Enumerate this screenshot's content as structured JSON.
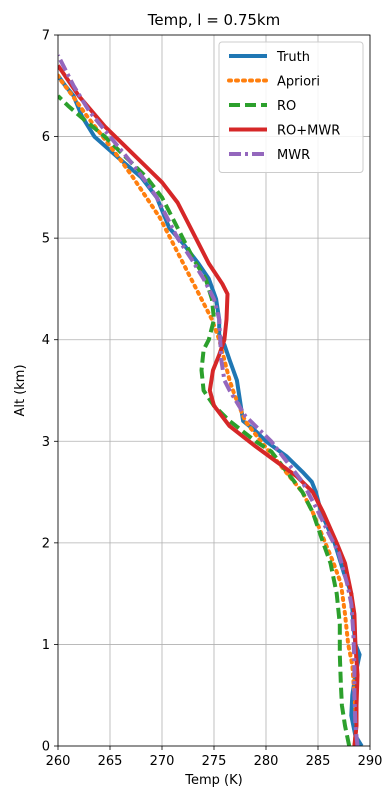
{
  "chart_data": {
    "type": "line",
    "title": "Temp, l = 0.75km",
    "xlabel": "Temp (K)",
    "ylabel": "Alt (km)",
    "xlim": [
      260,
      290
    ],
    "ylim": [
      0,
      7
    ],
    "xticks": [
      260,
      265,
      270,
      275,
      280,
      285,
      290
    ],
    "yticks": [
      0,
      1,
      2,
      3,
      4,
      5,
      6,
      7
    ],
    "grid": true,
    "legend_position": "top-right",
    "series": [
      {
        "name": "Truth",
        "color": "#1f77b4",
        "style": "solid",
        "points": [
          [
            289.2,
            0.0
          ],
          [
            288.6,
            0.1
          ],
          [
            288.2,
            0.3
          ],
          [
            288.3,
            0.5
          ],
          [
            288.6,
            0.7
          ],
          [
            289.0,
            0.9
          ],
          [
            288.6,
            1.0
          ],
          [
            288.4,
            1.2
          ],
          [
            288.2,
            1.5
          ],
          [
            287.5,
            1.7
          ],
          [
            286.6,
            2.0
          ],
          [
            285.3,
            2.3
          ],
          [
            284.8,
            2.5
          ],
          [
            284.4,
            2.6
          ],
          [
            283.5,
            2.7
          ],
          [
            282.0,
            2.85
          ],
          [
            280.0,
            3.0
          ],
          [
            279.0,
            3.1
          ],
          [
            277.8,
            3.2
          ],
          [
            277.5,
            3.4
          ],
          [
            277.2,
            3.6
          ],
          [
            276.5,
            3.8
          ],
          [
            276.0,
            3.95
          ],
          [
            275.5,
            4.05
          ],
          [
            275.5,
            4.2
          ],
          [
            275.2,
            4.4
          ],
          [
            274.5,
            4.6
          ],
          [
            273.5,
            4.75
          ],
          [
            272.0,
            4.95
          ],
          [
            270.7,
            5.1
          ],
          [
            269.5,
            5.4
          ],
          [
            268.0,
            5.6
          ],
          [
            265.7,
            5.8
          ],
          [
            263.5,
            6.0
          ],
          [
            262.3,
            6.2
          ],
          [
            261.5,
            6.4
          ],
          [
            260.7,
            6.5
          ],
          [
            260.0,
            6.6
          ]
        ]
      },
      {
        "name": "Apriori",
        "color": "#ff7f0e",
        "style": "dotted",
        "points": [
          [
            288.5,
            0.0
          ],
          [
            288.7,
            0.2
          ],
          [
            288.5,
            0.5
          ],
          [
            288.3,
            0.8
          ],
          [
            287.9,
            1.0
          ],
          [
            287.6,
            1.3
          ],
          [
            287.2,
            1.6
          ],
          [
            286.5,
            1.8
          ],
          [
            285.7,
            2.0
          ],
          [
            284.5,
            2.3
          ],
          [
            283.5,
            2.5
          ],
          [
            281.5,
            2.75
          ],
          [
            279.5,
            3.0
          ],
          [
            278.0,
            3.2
          ],
          [
            277.0,
            3.45
          ],
          [
            276.5,
            3.6
          ],
          [
            276.0,
            3.8
          ],
          [
            275.5,
            4.0
          ],
          [
            274.8,
            4.2
          ],
          [
            273.8,
            4.4
          ],
          [
            272.8,
            4.6
          ],
          [
            271.8,
            4.8
          ],
          [
            270.8,
            5.0
          ],
          [
            269.8,
            5.2
          ],
          [
            268.5,
            5.4
          ],
          [
            267.2,
            5.6
          ],
          [
            265.8,
            5.8
          ],
          [
            264.3,
            6.0
          ],
          [
            262.8,
            6.2
          ],
          [
            261.4,
            6.4
          ],
          [
            260.3,
            6.55
          ],
          [
            260.0,
            6.6
          ]
        ]
      },
      {
        "name": "RO",
        "color": "#2ca02c",
        "style": "dashed",
        "points": [
          [
            288.0,
            0.0
          ],
          [
            287.6,
            0.2
          ],
          [
            287.3,
            0.4
          ],
          [
            287.2,
            0.6
          ],
          [
            287.1,
            0.9
          ],
          [
            287.1,
            1.2
          ],
          [
            286.8,
            1.5
          ],
          [
            286.2,
            1.8
          ],
          [
            285.5,
            2.0
          ],
          [
            284.5,
            2.3
          ],
          [
            283.5,
            2.5
          ],
          [
            282.0,
            2.7
          ],
          [
            280.5,
            2.9
          ],
          [
            279.0,
            3.0
          ],
          [
            276.5,
            3.2
          ],
          [
            275.0,
            3.35
          ],
          [
            274.0,
            3.5
          ],
          [
            273.8,
            3.7
          ],
          [
            274.0,
            3.9
          ],
          [
            274.5,
            4.0
          ],
          [
            275.0,
            4.2
          ],
          [
            274.8,
            4.4
          ],
          [
            274.2,
            4.6
          ],
          [
            273.0,
            4.8
          ],
          [
            272.0,
            5.0
          ],
          [
            271.0,
            5.2
          ],
          [
            270.0,
            5.4
          ],
          [
            268.5,
            5.6
          ],
          [
            266.5,
            5.8
          ],
          [
            264.5,
            6.0
          ],
          [
            262.7,
            6.15
          ],
          [
            261.0,
            6.3
          ],
          [
            260.0,
            6.4
          ]
        ]
      },
      {
        "name": "RO+MWR",
        "color": "#d62728",
        "style": "solid",
        "points": [
          [
            288.5,
            0.0
          ],
          [
            288.7,
            0.2
          ],
          [
            288.7,
            0.4
          ],
          [
            288.8,
            0.7
          ],
          [
            288.6,
            1.0
          ],
          [
            288.5,
            1.3
          ],
          [
            288.2,
            1.5
          ],
          [
            287.6,
            1.8
          ],
          [
            286.8,
            2.0
          ],
          [
            285.5,
            2.3
          ],
          [
            284.5,
            2.5
          ],
          [
            283.0,
            2.65
          ],
          [
            281.0,
            2.8
          ],
          [
            279.0,
            2.95
          ],
          [
            276.5,
            3.15
          ],
          [
            275.0,
            3.35
          ],
          [
            274.6,
            3.5
          ],
          [
            274.9,
            3.7
          ],
          [
            275.5,
            3.85
          ],
          [
            276.0,
            4.0
          ],
          [
            276.2,
            4.2
          ],
          [
            276.3,
            4.45
          ],
          [
            275.8,
            4.55
          ],
          [
            274.5,
            4.75
          ],
          [
            273.5,
            4.95
          ],
          [
            272.5,
            5.15
          ],
          [
            271.5,
            5.35
          ],
          [
            270.0,
            5.55
          ],
          [
            268.5,
            5.7
          ],
          [
            266.5,
            5.9
          ],
          [
            264.5,
            6.1
          ],
          [
            262.0,
            6.4
          ],
          [
            260.0,
            6.7
          ]
        ]
      },
      {
        "name": "MWR",
        "color": "#9467bd",
        "style": "dashdot",
        "points": [
          [
            288.8,
            0.0
          ],
          [
            288.6,
            0.2
          ],
          [
            288.5,
            0.5
          ],
          [
            288.5,
            0.8
          ],
          [
            288.4,
            1.1
          ],
          [
            288.2,
            1.4
          ],
          [
            287.8,
            1.6
          ],
          [
            287.0,
            1.9
          ],
          [
            286.0,
            2.1
          ],
          [
            284.8,
            2.35
          ],
          [
            283.5,
            2.6
          ],
          [
            282.0,
            2.8
          ],
          [
            280.5,
            3.0
          ],
          [
            278.0,
            3.25
          ],
          [
            276.5,
            3.5
          ],
          [
            276.0,
            3.6
          ],
          [
            275.7,
            3.8
          ],
          [
            275.6,
            4.0
          ],
          [
            275.5,
            4.2
          ],
          [
            275.0,
            4.4
          ],
          [
            274.0,
            4.6
          ],
          [
            272.8,
            4.8
          ],
          [
            271.5,
            5.0
          ],
          [
            270.5,
            5.2
          ],
          [
            269.5,
            5.4
          ],
          [
            268.5,
            5.55
          ],
          [
            267.0,
            5.75
          ],
          [
            265.0,
            6.0
          ],
          [
            263.0,
            6.25
          ],
          [
            261.5,
            6.5
          ],
          [
            260.0,
            6.8
          ]
        ]
      }
    ]
  }
}
